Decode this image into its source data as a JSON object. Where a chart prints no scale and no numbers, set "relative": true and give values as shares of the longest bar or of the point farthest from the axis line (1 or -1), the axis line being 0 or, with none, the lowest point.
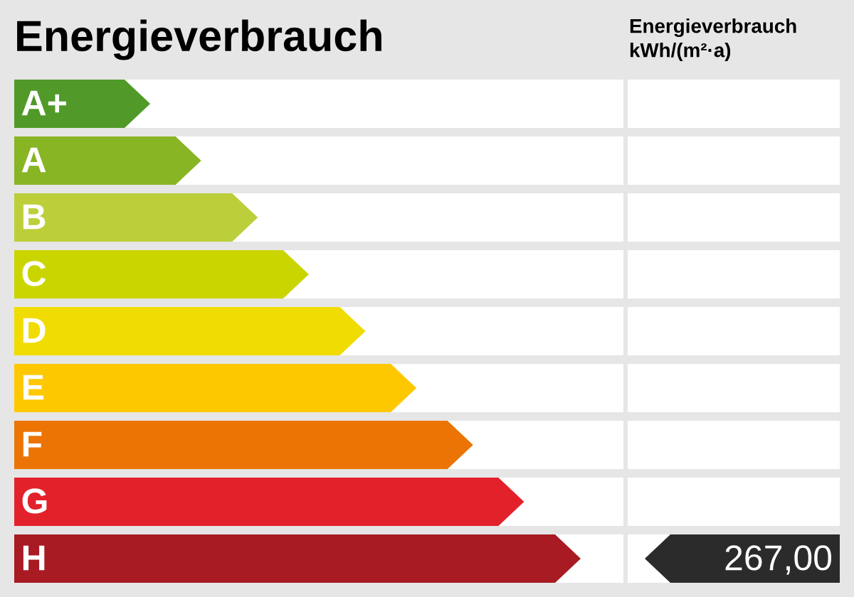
{
  "chart_data": {
    "type": "bar",
    "orientation": "horizontal",
    "relative": true,
    "title": "Energieverbrauch",
    "subtitle": "Energieverbrauch\nkWh/(m²·a)",
    "categories": [
      "A+",
      "A",
      "B",
      "C",
      "D",
      "E",
      "F",
      "G",
      "H"
    ],
    "values": [
      0.24,
      0.33,
      0.43,
      0.52,
      0.62,
      0.71,
      0.81,
      0.9,
      1.0
    ],
    "colors": [
      "#519a29",
      "#88b524",
      "#bccf3a",
      "#cad500",
      "#f0dc00",
      "#fec800",
      "#ec7405",
      "#e3212a",
      "#a81b23"
    ],
    "annotations": [
      "267,00"
    ]
  }
}
